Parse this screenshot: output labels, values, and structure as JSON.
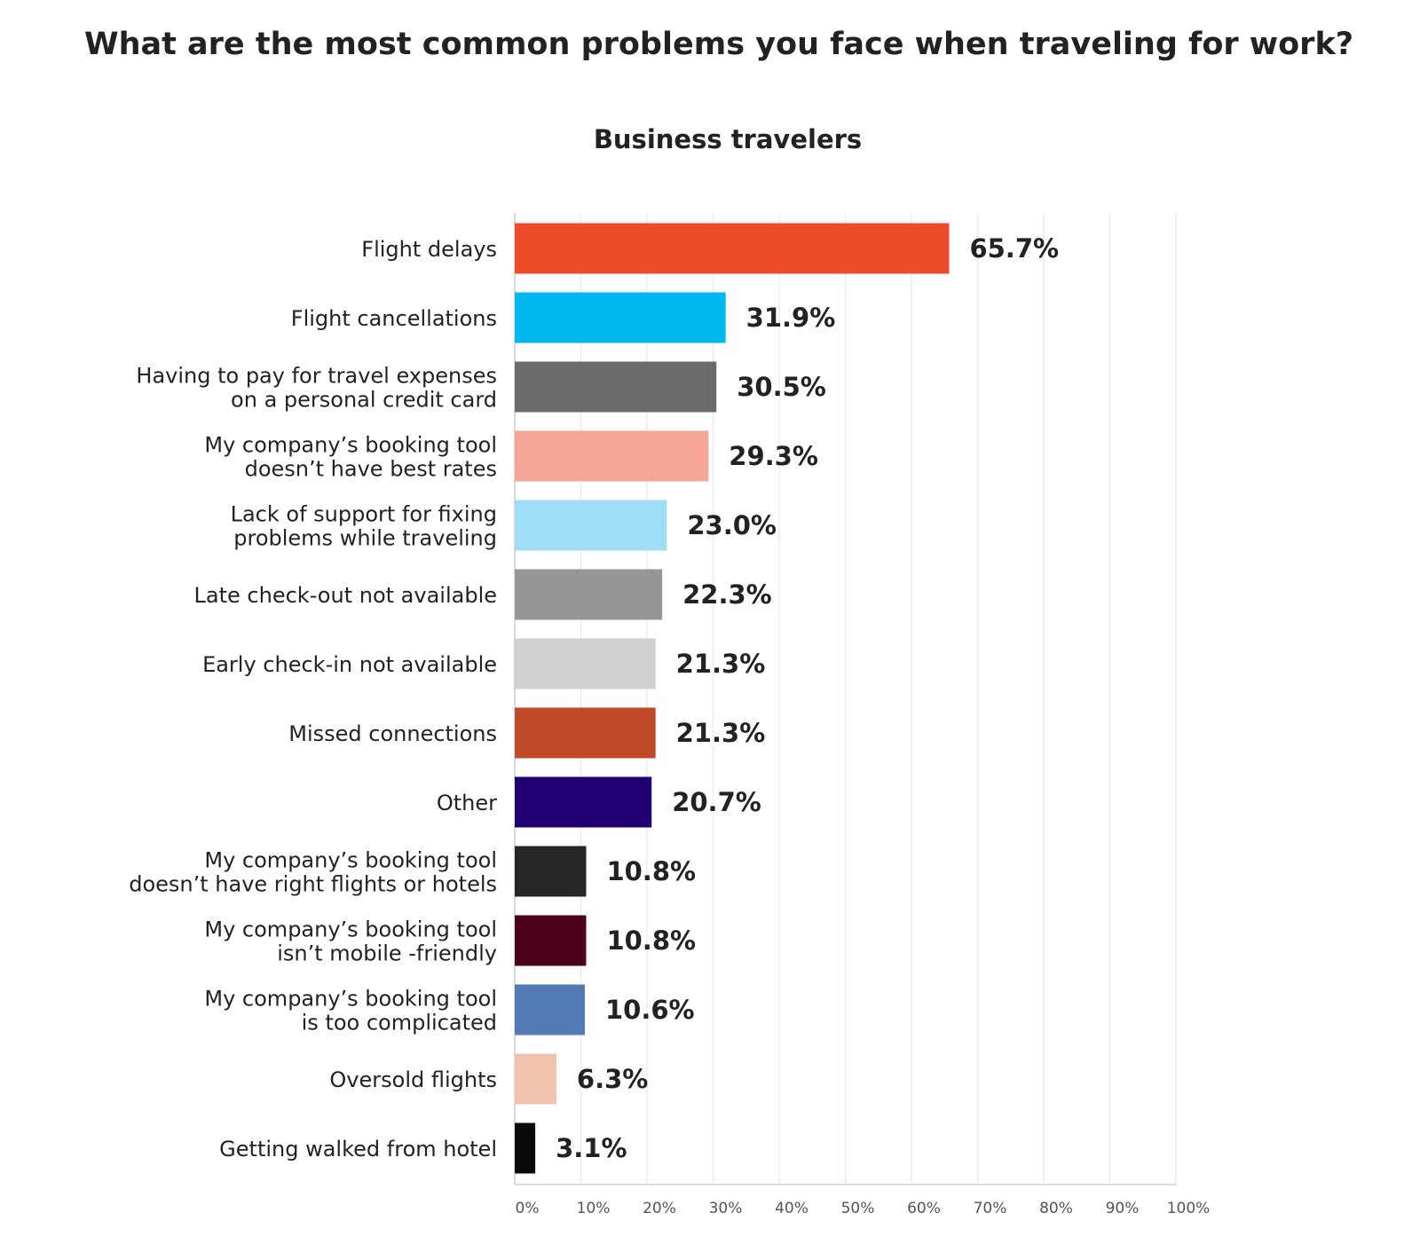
{
  "page": {
    "title": "What are the most common problems you face when traveling for work?"
  },
  "chart_data": {
    "type": "bar",
    "orientation": "horizontal",
    "title": "Business travelers",
    "categories": [
      "Flight delays",
      "Flight cancellations",
      "Having to pay for travel expenses on a personal credit card",
      "My company’s booking tool doesn’t have best rates",
      "Lack of support for fixing problems while traveling",
      "Late check-out not available",
      "Early check-in not available",
      "Missed connections",
      "Other",
      "My company’s booking tool doesn’t have right flights or hotels",
      "My company’s booking tool isn’t mobile -friendly",
      "My company’s booking tool is too complicated",
      "Oversold flights",
      "Getting walked from hotel"
    ],
    "category_lines": [
      [
        "Flight delays"
      ],
      [
        "Flight cancellations"
      ],
      [
        "Having to pay for travel expenses",
        "on a personal credit card"
      ],
      [
        "My company’s booking tool",
        "doesn’t have best rates"
      ],
      [
        "Lack of support for fixing",
        "problems while traveling"
      ],
      [
        "Late check-out not available"
      ],
      [
        "Early check-in not available"
      ],
      [
        "Missed connections"
      ],
      [
        "Other"
      ],
      [
        "My company’s booking tool",
        "doesn’t have right flights or hotels"
      ],
      [
        "My company’s booking tool",
        "isn’t mobile -friendly"
      ],
      [
        "My company’s booking tool",
        "is too complicated"
      ],
      [
        "Oversold flights"
      ],
      [
        "Getting walked from hotel"
      ]
    ],
    "values": [
      65.7,
      31.9,
      30.5,
      29.3,
      23.0,
      22.3,
      21.3,
      21.3,
      20.7,
      10.8,
      10.8,
      10.6,
      6.3,
      3.1
    ],
    "value_labels": [
      "65.7%",
      "31.9%",
      "30.5%",
      "29.3%",
      "23.0%",
      "22.3%",
      "21.3%",
      "21.3%",
      "20.7%",
      "10.8%",
      "10.8%",
      "10.6%",
      "6.3%",
      "3.1%"
    ],
    "colors": [
      "#EE4B2B",
      "#00B8F0",
      "#6B6B6B",
      "#F5A596",
      "#A0DEF5",
      "#969696",
      "#D0D0D0",
      "#BF4A2A",
      "#1E0071",
      "#262626",
      "#4B001C",
      "#527BB5",
      "#F2C2B0",
      "#0A0A0A"
    ],
    "xlim": [
      0,
      100
    ],
    "x_ticks": [
      0,
      10,
      20,
      30,
      40,
      50,
      60,
      70,
      80,
      90,
      100
    ],
    "x_tick_labels": [
      "0%",
      "10%",
      "20%",
      "30%",
      "40%",
      "50%",
      "60%",
      "70%",
      "80%",
      "90%",
      "100%"
    ],
    "grid": true
  }
}
